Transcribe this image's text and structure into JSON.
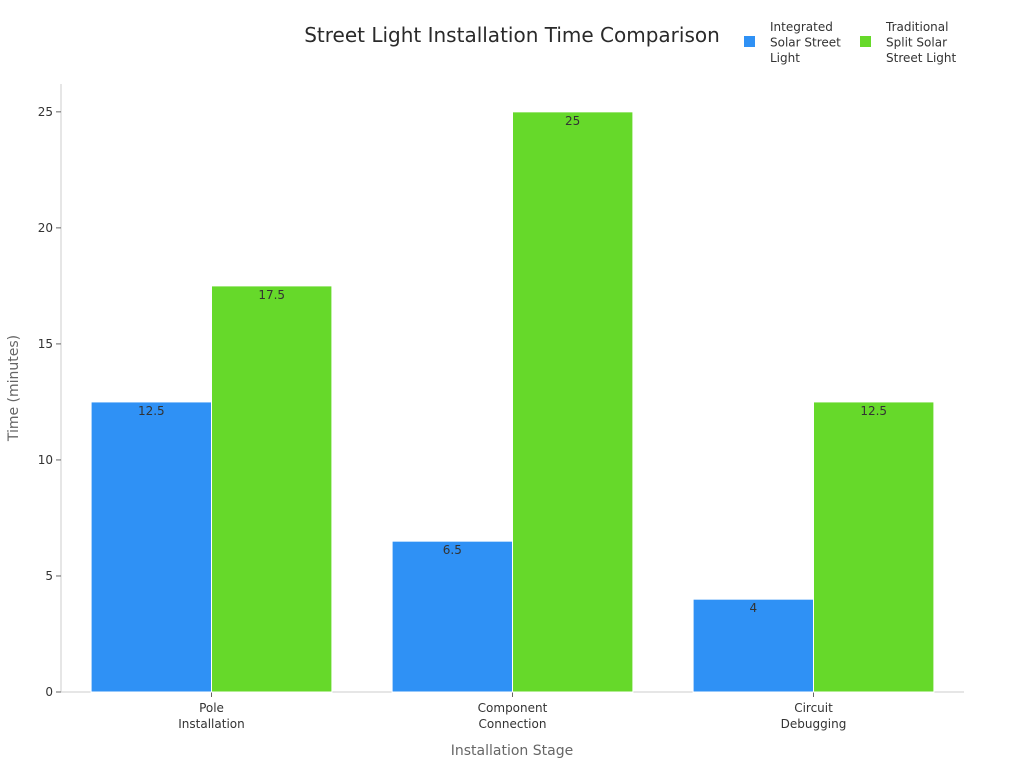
{
  "chart_data": {
    "type": "bar",
    "title": "Street Light Installation Time Comparison",
    "xlabel": "Installation Stage",
    "ylabel": "Time (minutes)",
    "categories": [
      [
        "Pole",
        "Installation"
      ],
      [
        "Component",
        "Connection"
      ],
      [
        "Circuit",
        "Debugging"
      ]
    ],
    "series": [
      {
        "name": [
          "Integrated",
          "Solar Street",
          "Light"
        ],
        "color": "#2f91f5",
        "values": [
          12.5,
          6.5,
          4
        ]
      },
      {
        "name": [
          "Traditional",
          "Split Solar",
          "Street Light"
        ],
        "color": "#66d92a",
        "values": [
          17.5,
          25,
          12.5
        ]
      }
    ],
    "ylim": [
      0,
      26.2
    ],
    "yticks": [
      0,
      5,
      10,
      15,
      20,
      25
    ],
    "grid": false,
    "legend_position": "top-right",
    "data_labels": true
  }
}
